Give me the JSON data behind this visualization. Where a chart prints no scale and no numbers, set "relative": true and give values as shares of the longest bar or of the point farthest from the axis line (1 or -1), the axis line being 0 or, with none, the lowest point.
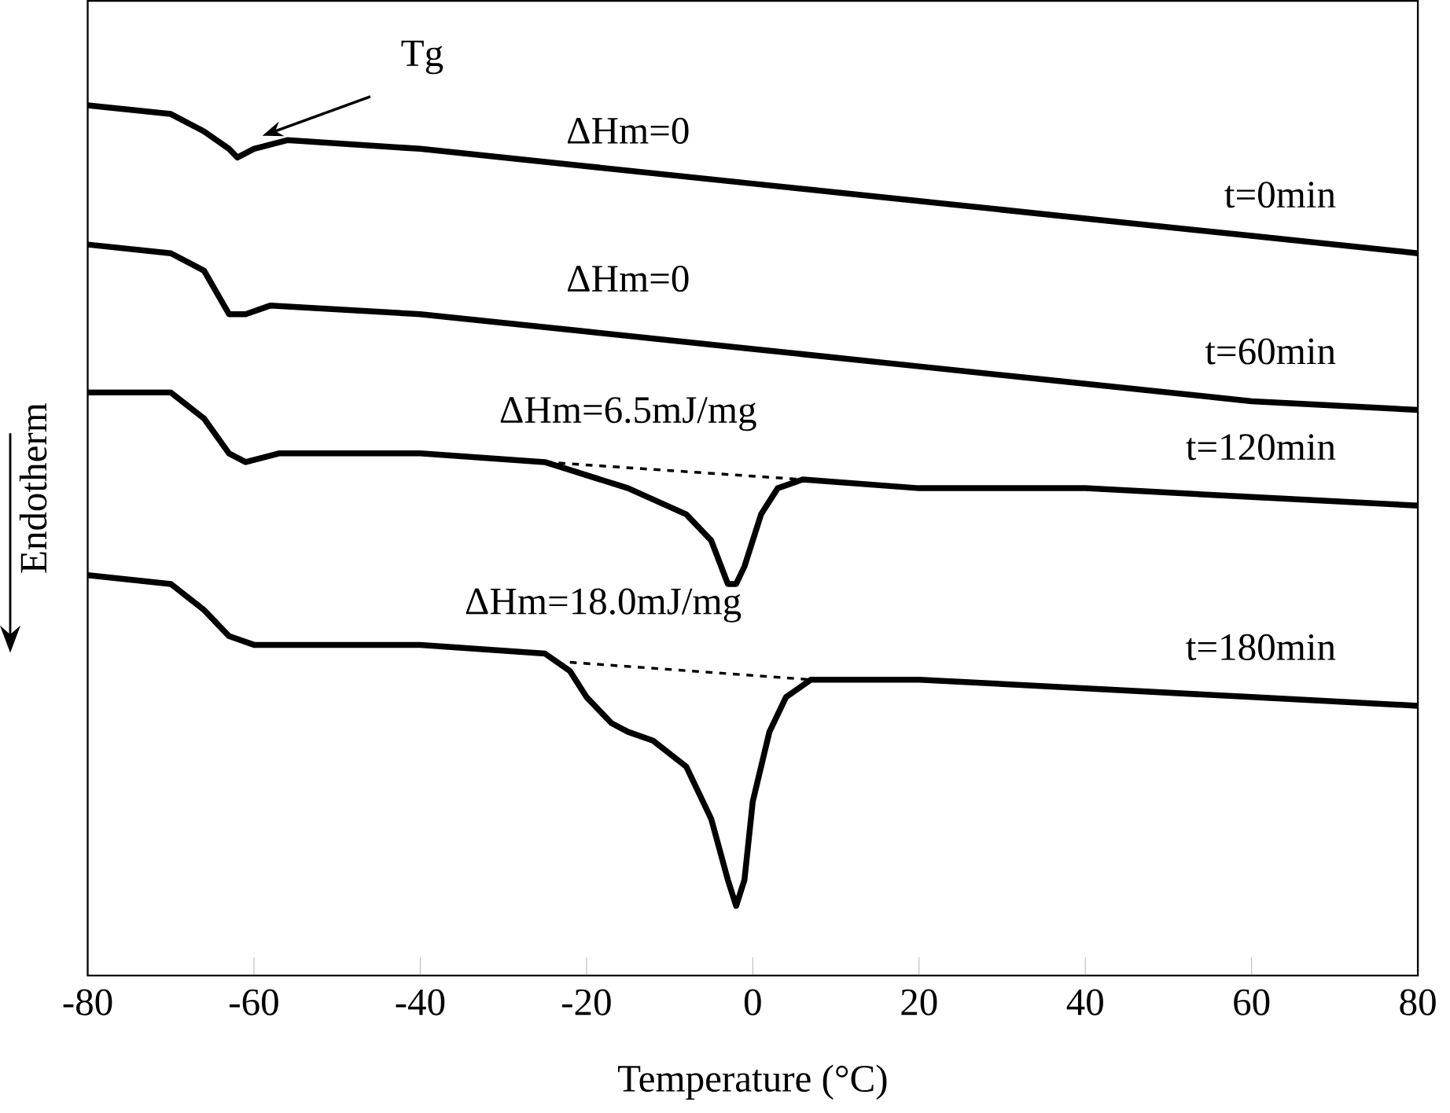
{
  "chart_data": {
    "type": "line",
    "relative": true,
    "xlabel": "Temperature (°C)",
    "ylabel": "Endotherm",
    "xlim": [
      -80,
      80
    ],
    "xticks": [
      -80,
      -60,
      -40,
      -20,
      0,
      20,
      40,
      60,
      80
    ],
    "legend": false,
    "grid": false,
    "marker": "none",
    "series": [
      {
        "name": "t=0min",
        "color": "#000000",
        "x": [
          -80,
          -70,
          -66,
          -63,
          -62,
          -60,
          -56,
          -40,
          -20,
          0,
          20,
          40,
          60,
          80
        ],
        "values": [
          1.0,
          0.99,
          0.97,
          0.95,
          0.94,
          0.95,
          0.96,
          0.95,
          0.93,
          0.91,
          0.89,
          0.87,
          0.85,
          0.83
        ]
      },
      {
        "name": "t=60min",
        "color": "#000000",
        "x": [
          -80,
          -70,
          -66,
          -63,
          -61,
          -58,
          -40,
          -20,
          0,
          20,
          40,
          60,
          80
        ],
        "values": [
          0.84,
          0.83,
          0.81,
          0.76,
          0.76,
          0.77,
          0.76,
          0.74,
          0.72,
          0.7,
          0.68,
          0.66,
          0.65
        ]
      },
      {
        "name": "t=120min",
        "color": "#000000",
        "x": [
          -80,
          -70,
          -66,
          -63,
          -61,
          -57,
          -40,
          -25,
          -15,
          -8,
          -5,
          -3,
          -2,
          -1,
          1,
          3,
          6,
          20,
          40,
          60,
          80
        ],
        "values": [
          0.67,
          0.67,
          0.64,
          0.6,
          0.59,
          0.6,
          0.6,
          0.59,
          0.56,
          0.53,
          0.5,
          0.45,
          0.45,
          0.47,
          0.53,
          0.56,
          0.57,
          0.56,
          0.56,
          0.55,
          0.54
        ]
      },
      {
        "name": "t=180min",
        "color": "#000000",
        "x": [
          -80,
          -70,
          -66,
          -63,
          -60,
          -40,
          -25,
          -22,
          -20,
          -17,
          -15,
          -12,
          -8,
          -5,
          -3,
          -2,
          -1,
          0,
          2,
          4,
          7,
          20,
          40,
          60,
          80
        ],
        "values": [
          0.46,
          0.45,
          0.42,
          0.39,
          0.38,
          0.38,
          0.37,
          0.35,
          0.32,
          0.29,
          0.28,
          0.27,
          0.24,
          0.18,
          0.11,
          0.08,
          0.11,
          0.2,
          0.28,
          0.32,
          0.34,
          0.34,
          0.33,
          0.32,
          0.31
        ]
      },
      {
        "color": "#000000",
        "line_style": "dashed",
        "x": [
          -25,
          6
        ],
        "values": [
          0.59,
          0.57
        ]
      },
      {
        "color": "#000000",
        "line_style": "dashed",
        "x": [
          -22,
          7
        ],
        "values": [
          0.36,
          0.34
        ]
      }
    ],
    "annotations": [
      "Tg",
      "ΔHm=0",
      "ΔHm=0",
      "ΔHm=6.5mJ/mg",
      "ΔHm=18.0mJ/mg"
    ]
  }
}
